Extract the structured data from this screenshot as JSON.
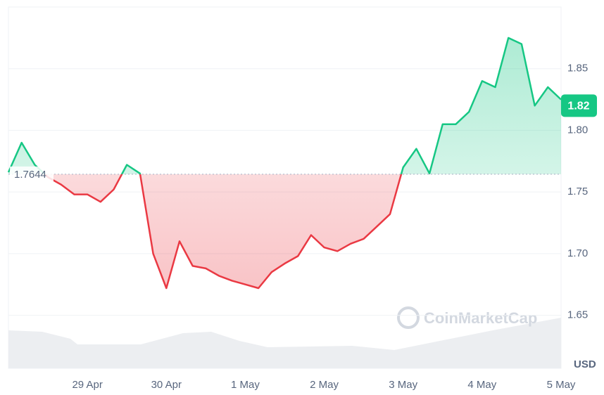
{
  "chart_data": {
    "type": "line",
    "categories": [
      null,
      null,
      null,
      null,
      null,
      null,
      "29 Apr",
      null,
      null,
      null,
      null,
      null,
      "30 Apr",
      null,
      null,
      null,
      null,
      null,
      "1 May",
      null,
      null,
      null,
      null,
      null,
      "2 May",
      null,
      null,
      null,
      null,
      null,
      "3 May",
      null,
      null,
      null,
      null,
      null,
      "4 May",
      null,
      null,
      null,
      null,
      null,
      "5 May"
    ],
    "values": [
      1.766,
      1.79,
      1.772,
      1.762,
      1.756,
      1.748,
      1.748,
      1.742,
      1.752,
      1.772,
      1.765,
      1.7,
      1.672,
      1.71,
      1.69,
      1.688,
      1.682,
      1.678,
      1.675,
      1.672,
      1.685,
      1.692,
      1.698,
      1.715,
      1.705,
      1.702,
      1.708,
      1.712,
      1.722,
      1.732,
      1.77,
      1.785,
      1.765,
      1.805,
      1.805,
      1.815,
      1.84,
      1.835,
      1.875,
      1.87,
      1.82,
      1.835,
      1.825
    ],
    "color_up": "#16c784",
    "color_down": "#ea3943",
    "baseline": 1.7644,
    "last_price": 1.82,
    "y_unit": "USD",
    "watermark": "CoinMarketCap",
    "ylim": [
      1.607,
      1.9
    ],
    "yticks": [
      1.65,
      {
        "value": 1.7,
        "label": "1.70"
      },
      1.75,
      {
        "value": 1.8,
        "label": "1.80"
      },
      1.85
    ],
    "grid": true
  }
}
